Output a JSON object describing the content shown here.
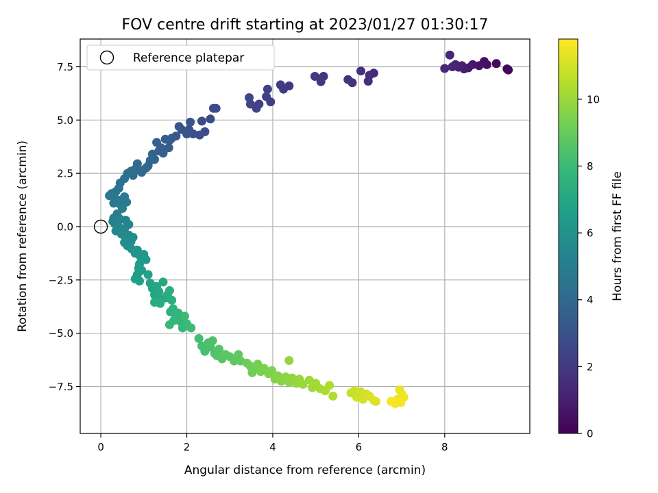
{
  "chart_data": {
    "type": "scatter",
    "title": "FOV centre drift starting at 2023/01/27 01:30:17",
    "xlabel": "Angular distance from reference (arcmin)",
    "ylabel": "Rotation from reference (arcmin)",
    "xlim": [
      -0.48,
      9.98
    ],
    "ylim": [
      -9.7,
      8.8
    ],
    "xticks": [
      0,
      2,
      4,
      6,
      8
    ],
    "xtick_labels": [
      "0",
      "2",
      "4",
      "6",
      "8"
    ],
    "yticks": [
      -7.5,
      -5.0,
      -2.5,
      0.0,
      2.5,
      5.0,
      7.5
    ],
    "ytick_labels": [
      "−7.5",
      "−5.0",
      "−2.5",
      "0.0",
      "2.5",
      "5.0",
      "7.5"
    ],
    "grid": true,
    "legend": {
      "position": "top-left",
      "entries": [
        "Reference platepar"
      ]
    },
    "reference_point": {
      "x": 0,
      "y": 0,
      "label": "Reference platepar"
    },
    "colorbar": {
      "label": "Hours from first FF file",
      "range": [
        0,
        11.8
      ],
      "ticks": [
        0,
        2,
        4,
        6,
        8,
        10
      ],
      "tick_labels": [
        "0",
        "2",
        "4",
        "6",
        "8",
        "10"
      ],
      "colormap": "viridis",
      "colors": [
        "#440154",
        "#482878",
        "#3e4989",
        "#31688e",
        "#26828e",
        "#1f9e89",
        "#35b779",
        "#6ece58",
        "#b5de2b",
        "#fde725"
      ]
    },
    "series": [
      {
        "points": [
          [
            9.48,
            7.35,
            0.1
          ],
          [
            9.45,
            7.4,
            0.2
          ],
          [
            9.2,
            7.65,
            0.3
          ],
          [
            8.98,
            7.6,
            0.4
          ],
          [
            8.92,
            7.75,
            0.5
          ],
          [
            8.8,
            7.55,
            0.6
          ],
          [
            8.65,
            7.6,
            0.7
          ],
          [
            8.55,
            7.45,
            0.8
          ],
          [
            8.45,
            7.4,
            0.9
          ],
          [
            8.4,
            7.55,
            1.0
          ],
          [
            8.32,
            7.48,
            1.05
          ],
          [
            8.25,
            7.6,
            1.1
          ],
          [
            8.18,
            7.5,
            1.2
          ],
          [
            8.12,
            8.05,
            1.25
          ],
          [
            8.0,
            7.42,
            1.3
          ],
          [
            6.35,
            7.2,
            1.45
          ],
          [
            6.25,
            7.1,
            1.5
          ],
          [
            6.22,
            6.82,
            1.55
          ],
          [
            6.05,
            7.3,
            1.6
          ],
          [
            5.85,
            6.75,
            1.65
          ],
          [
            5.75,
            6.9,
            1.7
          ],
          [
            5.18,
            7.05,
            1.8
          ],
          [
            5.12,
            6.8,
            1.85
          ],
          [
            4.98,
            7.05,
            1.9
          ],
          [
            4.38,
            6.6,
            2.0
          ],
          [
            4.25,
            6.45,
            2.05
          ],
          [
            4.18,
            6.65,
            2.1
          ],
          [
            3.95,
            5.85,
            2.2
          ],
          [
            3.88,
            6.45,
            2.25
          ],
          [
            3.85,
            6.1,
            2.3
          ],
          [
            3.68,
            5.75,
            2.35
          ],
          [
            3.62,
            5.55,
            2.4
          ],
          [
            3.48,
            5.75,
            2.45
          ],
          [
            3.45,
            6.05,
            2.5
          ],
          [
            2.68,
            5.55,
            2.6
          ],
          [
            2.62,
            5.55,
            2.65
          ],
          [
            2.55,
            5.05,
            2.7
          ],
          [
            2.42,
            4.45,
            2.75
          ],
          [
            2.35,
            4.95,
            2.8
          ],
          [
            2.3,
            4.3,
            2.85
          ],
          [
            2.15,
            4.35,
            2.9
          ],
          [
            2.05,
            4.55,
            2.95
          ],
          [
            2.0,
            4.35,
            3.0
          ],
          [
            2.08,
            4.9,
            3.05
          ],
          [
            1.88,
            4.55,
            3.1
          ],
          [
            1.82,
            4.7,
            3.15
          ],
          [
            1.75,
            4.25,
            3.2
          ],
          [
            1.65,
            4.15,
            3.3
          ],
          [
            1.6,
            4.05,
            3.35
          ],
          [
            1.58,
            3.7,
            3.45
          ],
          [
            1.5,
            4.1,
            3.5
          ],
          [
            1.45,
            3.45,
            3.55
          ],
          [
            1.4,
            3.7,
            3.6
          ],
          [
            1.35,
            3.55,
            3.65
          ],
          [
            1.3,
            3.95,
            3.7
          ],
          [
            1.25,
            3.15,
            3.75
          ],
          [
            1.2,
            3.4,
            3.8
          ],
          [
            1.15,
            3.1,
            3.85
          ],
          [
            1.1,
            2.85,
            3.9
          ],
          [
            1.05,
            2.75,
            3.95
          ],
          [
            0.95,
            2.55,
            4.0
          ],
          [
            0.9,
            2.65,
            4.05
          ],
          [
            0.85,
            2.95,
            4.1
          ],
          [
            0.8,
            2.7,
            4.15
          ],
          [
            0.75,
            2.4,
            4.2
          ],
          [
            0.7,
            2.6,
            4.25
          ],
          [
            0.62,
            2.5,
            4.3
          ],
          [
            0.55,
            2.25,
            4.35
          ],
          [
            0.45,
            2.05,
            4.4
          ],
          [
            0.42,
            1.8,
            4.45
          ],
          [
            0.35,
            1.65,
            4.55
          ],
          [
            0.3,
            1.5,
            4.6
          ],
          [
            0.25,
            1.55,
            4.65
          ],
          [
            0.2,
            1.45,
            4.7
          ],
          [
            0.3,
            1.1,
            4.75
          ],
          [
            0.4,
            1.25,
            4.8
          ],
          [
            0.45,
            1.05,
            4.85
          ],
          [
            0.55,
            1.4,
            4.9
          ],
          [
            0.6,
            1.15,
            4.95
          ],
          [
            0.5,
            0.85,
            5.0
          ],
          [
            0.38,
            0.6,
            5.05
          ],
          [
            0.3,
            0.4,
            5.1
          ],
          [
            0.28,
            0.25,
            5.15
          ],
          [
            0.32,
            0.15,
            5.2
          ],
          [
            0.45,
            0.35,
            5.25
          ],
          [
            0.58,
            0.3,
            5.3
          ],
          [
            0.65,
            0.1,
            5.35
          ],
          [
            0.55,
            -0.1,
            5.4
          ],
          [
            0.42,
            0.0,
            5.45
          ],
          [
            0.35,
            -0.2,
            5.5
          ],
          [
            0.48,
            -0.35,
            5.55
          ],
          [
            0.58,
            -0.55,
            5.6
          ],
          [
            0.65,
            -0.4,
            5.65
          ],
          [
            0.7,
            -0.7,
            5.7
          ],
          [
            0.75,
            -0.5,
            5.75
          ],
          [
            0.55,
            -0.75,
            5.8
          ],
          [
            0.62,
            -0.9,
            5.85
          ],
          [
            0.72,
            -1.05,
            6.0
          ],
          [
            0.8,
            -1.25,
            6.1
          ],
          [
            0.85,
            -1.1,
            6.15
          ],
          [
            0.92,
            -1.4,
            6.2
          ],
          [
            1.0,
            -1.3,
            6.3
          ],
          [
            1.05,
            -1.55,
            6.35
          ],
          [
            0.9,
            -1.75,
            6.4
          ],
          [
            0.95,
            -2.05,
            6.45
          ],
          [
            0.85,
            -2.25,
            6.5
          ],
          [
            0.88,
            -1.95,
            6.55
          ],
          [
            0.8,
            -2.45,
            6.6
          ],
          [
            0.9,
            -2.55,
            6.65
          ],
          [
            1.1,
            -2.25,
            6.7
          ],
          [
            1.15,
            -2.65,
            6.75
          ],
          [
            1.2,
            -2.9,
            6.8
          ],
          [
            1.25,
            -3.2,
            6.9
          ],
          [
            1.3,
            -2.8,
            6.95
          ],
          [
            1.35,
            -3.05,
            7.0
          ],
          [
            1.4,
            -3.4,
            7.05
          ],
          [
            1.45,
            -2.6,
            7.1
          ],
          [
            1.5,
            -3.35,
            7.15
          ],
          [
            1.55,
            -3.2,
            7.2
          ],
          [
            1.38,
            -3.6,
            7.25
          ],
          [
            1.25,
            -3.55,
            7.3
          ],
          [
            1.6,
            -3.0,
            7.35
          ],
          [
            1.65,
            -3.45,
            7.4
          ],
          [
            1.62,
            -4.0,
            7.5
          ],
          [
            1.68,
            -3.85,
            7.55
          ],
          [
            1.72,
            -4.05,
            7.6
          ],
          [
            1.78,
            -4.25,
            7.65
          ],
          [
            1.8,
            -4.05,
            7.7
          ],
          [
            1.85,
            -4.45,
            7.75
          ],
          [
            1.7,
            -4.4,
            7.8
          ],
          [
            1.6,
            -4.6,
            7.85
          ],
          [
            1.9,
            -4.75,
            7.9
          ],
          [
            1.95,
            -4.2,
            7.95
          ],
          [
            2.0,
            -4.55,
            8.0
          ],
          [
            2.1,
            -4.75,
            8.05
          ],
          [
            2.28,
            -5.25,
            8.2
          ],
          [
            2.35,
            -5.6,
            8.25
          ],
          [
            2.42,
            -5.85,
            8.3
          ],
          [
            2.5,
            -5.45,
            8.35
          ],
          [
            2.55,
            -5.65,
            8.4
          ],
          [
            2.6,
            -5.35,
            8.45
          ],
          [
            2.65,
            -5.95,
            8.5
          ],
          [
            2.7,
            -6.05,
            8.55
          ],
          [
            2.75,
            -5.75,
            8.6
          ],
          [
            2.82,
            -6.2,
            8.65
          ],
          [
            2.9,
            -6.0,
            8.7
          ],
          [
            3.0,
            -6.1,
            8.75
          ],
          [
            3.1,
            -6.3,
            8.8
          ],
          [
            3.2,
            -6.0,
            8.85
          ],
          [
            3.25,
            -6.3,
            8.9
          ],
          [
            3.4,
            -6.4,
            9.1
          ],
          [
            3.48,
            -6.55,
            9.15
          ],
          [
            3.52,
            -6.85,
            9.2
          ],
          [
            3.58,
            -6.6,
            9.25
          ],
          [
            3.65,
            -6.45,
            9.3
          ],
          [
            3.72,
            -6.8,
            9.35
          ],
          [
            3.8,
            -6.65,
            9.4
          ],
          [
            3.9,
            -6.9,
            9.45
          ],
          [
            3.98,
            -6.75,
            9.5
          ],
          [
            4.05,
            -7.15,
            9.55
          ],
          [
            4.12,
            -7.0,
            9.6
          ],
          [
            4.2,
            -7.25,
            9.65
          ],
          [
            4.3,
            -7.05,
            9.7
          ],
          [
            4.38,
            -7.3,
            9.75
          ],
          [
            4.45,
            -7.1,
            9.8
          ],
          [
            4.38,
            -6.28,
            9.85
          ],
          [
            4.55,
            -7.35,
            9.9
          ],
          [
            4.62,
            -7.15,
            9.95
          ],
          [
            4.7,
            -7.4,
            10.0
          ],
          [
            4.85,
            -7.2,
            10.05
          ],
          [
            4.92,
            -7.55,
            10.1
          ],
          [
            5.0,
            -7.35,
            10.15
          ],
          [
            5.1,
            -7.6,
            10.2
          ],
          [
            5.22,
            -7.7,
            10.3
          ],
          [
            5.32,
            -7.45,
            10.35
          ],
          [
            5.4,
            -7.95,
            10.4
          ],
          [
            5.82,
            -7.8,
            10.8
          ],
          [
            5.9,
            -7.7,
            10.85
          ],
          [
            5.95,
            -8.0,
            10.9
          ],
          [
            6.05,
            -7.75,
            10.95
          ],
          [
            6.1,
            -8.1,
            11.0
          ],
          [
            6.18,
            -7.85,
            11.05
          ],
          [
            6.25,
            -7.95,
            11.1
          ],
          [
            6.35,
            -8.15,
            11.15
          ],
          [
            6.4,
            -8.2,
            11.2
          ],
          [
            6.95,
            -7.65,
            11.4
          ],
          [
            7.0,
            -7.85,
            11.45
          ],
          [
            7.05,
            -8.0,
            11.5
          ],
          [
            6.9,
            -8.1,
            11.55
          ],
          [
            6.85,
            -8.3,
            11.6
          ],
          [
            6.98,
            -8.25,
            11.65
          ],
          [
            6.75,
            -8.2,
            11.7
          ]
        ]
      }
    ]
  }
}
